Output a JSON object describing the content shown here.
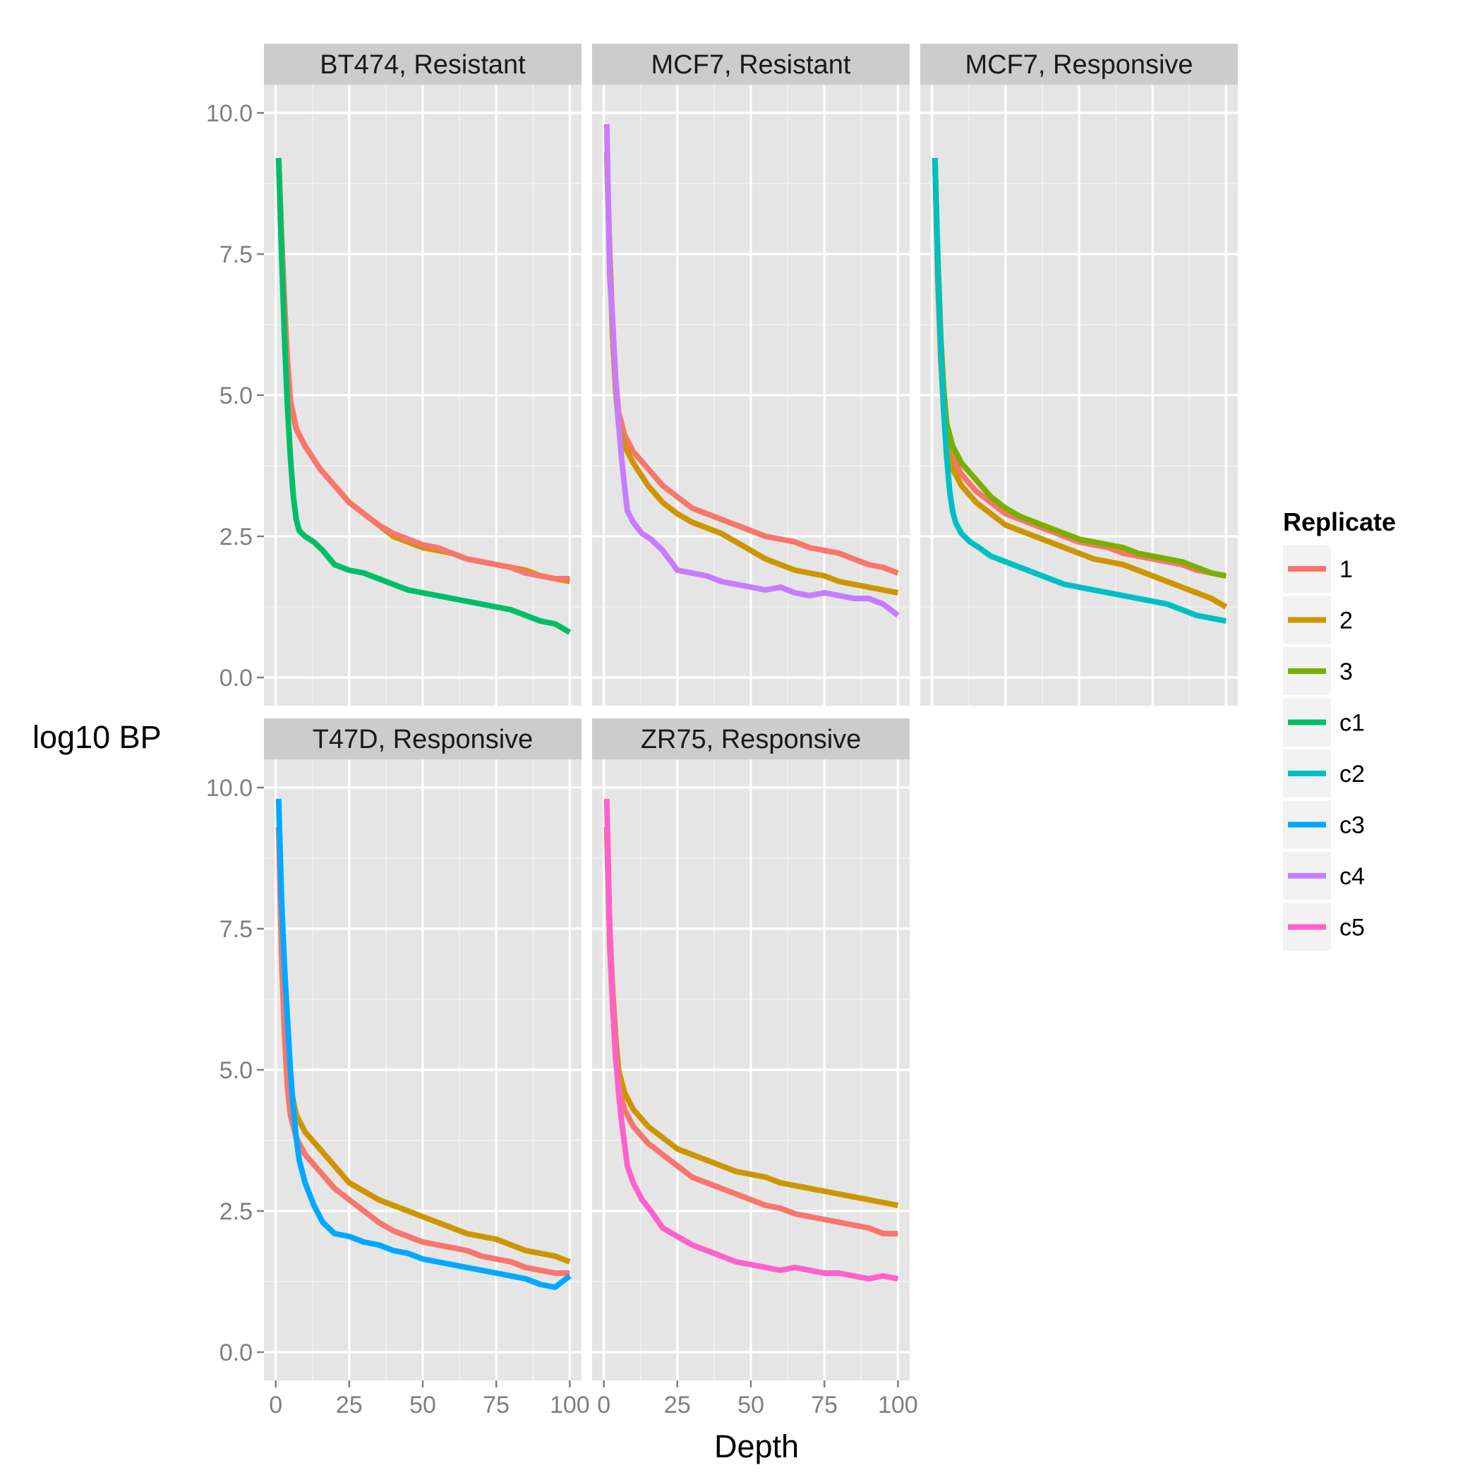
{
  "chart_data": {
    "type": "line",
    "xlabel": "Depth",
    "ylabel": "log10 BP",
    "xlim": [
      -4,
      104
    ],
    "ylim": [
      -0.5,
      10.5
    ],
    "x_ticks": [
      0,
      25,
      50,
      75,
      100
    ],
    "y_ticks": [
      0.0,
      2.5,
      5.0,
      7.5,
      10.0
    ],
    "x_tick_labels": [
      "0",
      "25",
      "50",
      "75",
      "100"
    ],
    "y_tick_labels": [
      "0.0",
      "2.5",
      "5.0",
      "7.5",
      "10.0"
    ],
    "grid": true,
    "legend": {
      "title": "Replicate",
      "placement": "right",
      "entries": [
        {
          "label": "1",
          "color": "#F8766D"
        },
        {
          "label": "2",
          "color": "#CD9600"
        },
        {
          "label": "3",
          "color": "#7CAE00"
        },
        {
          "label": "c1",
          "color": "#00BE67"
        },
        {
          "label": "c2",
          "color": "#00BFC4"
        },
        {
          "label": "c3",
          "color": "#00A9FF"
        },
        {
          "label": "c4",
          "color": "#C77CFF"
        },
        {
          "label": "c5",
          "color": "#FF61CC"
        }
      ]
    },
    "facets": [
      {
        "title": "BT474, Resistant",
        "series": [
          {
            "name": "2",
            "x": [
              1,
              2,
              3,
              4,
              5,
              7,
              10,
              15,
              20,
              25,
              30,
              35,
              40,
              45,
              50,
              55,
              60,
              65,
              70,
              75,
              80,
              85,
              90,
              95,
              100
            ],
            "y": [
              9.2,
              7.8,
              6.6,
              5.6,
              4.9,
              4.4,
              4.1,
              3.7,
              3.4,
              3.1,
              2.9,
              2.7,
              2.5,
              2.4,
              2.3,
              2.25,
              2.2,
              2.1,
              2.05,
              2.0,
              1.95,
              1.9,
              1.8,
              1.75,
              1.7
            ]
          },
          {
            "name": "1",
            "x": [
              1,
              2,
              3,
              4,
              5,
              7,
              10,
              15,
              20,
              25,
              30,
              35,
              40,
              45,
              50,
              55,
              60,
              65,
              70,
              75,
              80,
              85,
              90,
              95,
              100
            ],
            "y": [
              9.2,
              7.8,
              6.6,
              5.6,
              4.9,
              4.4,
              4.1,
              3.7,
              3.4,
              3.1,
              2.9,
              2.7,
              2.55,
              2.45,
              2.35,
              2.3,
              2.2,
              2.1,
              2.05,
              2.0,
              1.95,
              1.85,
              1.8,
              1.75,
              1.75
            ]
          },
          {
            "name": "c1",
            "x": [
              1,
              2,
              3,
              4,
              5,
              6,
              7,
              8,
              10,
              13,
              16,
              20,
              25,
              30,
              35,
              40,
              45,
              50,
              55,
              60,
              65,
              70,
              75,
              80,
              85,
              90,
              95,
              100
            ],
            "y": [
              9.2,
              7.5,
              6.0,
              4.8,
              3.9,
              3.2,
              2.8,
              2.6,
              2.5,
              2.4,
              2.25,
              2.0,
              1.9,
              1.85,
              1.75,
              1.65,
              1.55,
              1.5,
              1.45,
              1.4,
              1.35,
              1.3,
              1.25,
              1.2,
              1.1,
              1.0,
              0.95,
              0.8
            ]
          }
        ]
      },
      {
        "title": "MCF7, Resistant",
        "series": [
          {
            "name": "1",
            "x": [
              1,
              2,
              3,
              4,
              5,
              7,
              10,
              15,
              20,
              25,
              30,
              35,
              40,
              45,
              50,
              55,
              60,
              65,
              70,
              75,
              80,
              85,
              90,
              95,
              100
            ],
            "y": [
              9.3,
              7.5,
              6.2,
              5.3,
              4.7,
              4.3,
              4.0,
              3.7,
              3.4,
              3.2,
              3.0,
              2.9,
              2.8,
              2.7,
              2.6,
              2.5,
              2.45,
              2.4,
              2.3,
              2.25,
              2.2,
              2.1,
              2.0,
              1.95,
              1.85
            ]
          },
          {
            "name": "2",
            "x": [
              1,
              2,
              3,
              4,
              5,
              7,
              10,
              15,
              20,
              25,
              30,
              35,
              40,
              45,
              50,
              55,
              60,
              65,
              70,
              75,
              80,
              85,
              90,
              95,
              100
            ],
            "y": [
              9.3,
              7.4,
              6.0,
              5.1,
              4.5,
              4.1,
              3.8,
              3.4,
              3.1,
              2.9,
              2.75,
              2.65,
              2.55,
              2.4,
              2.25,
              2.1,
              2.0,
              1.9,
              1.85,
              1.8,
              1.7,
              1.65,
              1.6,
              1.55,
              1.5
            ]
          },
          {
            "name": "c4",
            "x": [
              1,
              2,
              3,
              4,
              5,
              6,
              7,
              8,
              10,
              13,
              16,
              20,
              25,
              30,
              35,
              40,
              45,
              50,
              55,
              60,
              65,
              70,
              75,
              80,
              85,
              90,
              95,
              100
            ],
            "y": [
              9.8,
              7.1,
              6.3,
              5.3,
              4.5,
              3.9,
              3.4,
              2.95,
              2.75,
              2.55,
              2.45,
              2.25,
              1.9,
              1.85,
              1.8,
              1.7,
              1.65,
              1.6,
              1.55,
              1.6,
              1.5,
              1.45,
              1.5,
              1.45,
              1.4,
              1.4,
              1.3,
              1.1
            ]
          }
        ]
      },
      {
        "title": "MCF7, Responsive",
        "series": [
          {
            "name": "1",
            "x": [
              1,
              2,
              3,
              4,
              5,
              7,
              10,
              15,
              20,
              25,
              30,
              35,
              40,
              45,
              50,
              55,
              60,
              65,
              70,
              75,
              80,
              85,
              90,
              95,
              100
            ],
            "y": [
              9.2,
              7.2,
              5.8,
              4.9,
              4.3,
              3.9,
              3.6,
              3.3,
              3.1,
              2.9,
              2.8,
              2.7,
              2.6,
              2.5,
              2.4,
              2.35,
              2.3,
              2.2,
              2.15,
              2.1,
              2.05,
              2.0,
              1.9,
              1.85,
              1.8
            ]
          },
          {
            "name": "2",
            "x": [
              1,
              2,
              3,
              4,
              5,
              7,
              10,
              15,
              20,
              25,
              30,
              35,
              40,
              45,
              50,
              55,
              60,
              65,
              70,
              75,
              80,
              85,
              90,
              95,
              100
            ],
            "y": [
              9.2,
              7.0,
              5.6,
              4.7,
              4.1,
              3.7,
              3.4,
              3.1,
              2.9,
              2.7,
              2.6,
              2.5,
              2.4,
              2.3,
              2.2,
              2.1,
              2.05,
              2.0,
              1.9,
              1.8,
              1.7,
              1.6,
              1.5,
              1.4,
              1.25
            ]
          },
          {
            "name": "3",
            "x": [
              1,
              2,
              3,
              4,
              5,
              7,
              10,
              15,
              20,
              25,
              30,
              35,
              40,
              45,
              50,
              55,
              60,
              65,
              70,
              75,
              80,
              85,
              90,
              95,
              100
            ],
            "y": [
              9.2,
              7.4,
              6.0,
              5.1,
              4.5,
              4.1,
              3.8,
              3.5,
              3.2,
              3.0,
              2.85,
              2.75,
              2.65,
              2.55,
              2.45,
              2.4,
              2.35,
              2.3,
              2.2,
              2.15,
              2.1,
              2.05,
              1.95,
              1.85,
              1.8
            ]
          },
          {
            "name": "c2",
            "x": [
              1,
              2,
              3,
              4,
              5,
              6,
              7,
              8,
              10,
              13,
              16,
              20,
              25,
              30,
              35,
              40,
              45,
              50,
              55,
              60,
              65,
              70,
              75,
              80,
              85,
              90,
              95,
              100
            ],
            "y": [
              9.2,
              7.2,
              5.8,
              4.7,
              3.9,
              3.3,
              2.95,
              2.75,
              2.55,
              2.4,
              2.3,
              2.15,
              2.05,
              1.95,
              1.85,
              1.75,
              1.65,
              1.6,
              1.55,
              1.5,
              1.45,
              1.4,
              1.35,
              1.3,
              1.2,
              1.1,
              1.05,
              1.0
            ]
          }
        ]
      },
      {
        "title": "T47D, Responsive",
        "series": [
          {
            "name": "2",
            "x": [
              1,
              2,
              3,
              4,
              5,
              7,
              10,
              15,
              20,
              25,
              30,
              35,
              40,
              45,
              50,
              55,
              60,
              65,
              70,
              75,
              80,
              85,
              90,
              95,
              100
            ],
            "y": [
              9.3,
              7.7,
              6.3,
              5.3,
              4.7,
              4.2,
              3.9,
              3.6,
              3.3,
              3.0,
              2.85,
              2.7,
              2.6,
              2.5,
              2.4,
              2.3,
              2.2,
              2.1,
              2.05,
              2.0,
              1.9,
              1.8,
              1.75,
              1.7,
              1.6
            ]
          },
          {
            "name": "1",
            "x": [
              1,
              2,
              3,
              4,
              5,
              7,
              10,
              15,
              20,
              25,
              30,
              35,
              40,
              45,
              50,
              55,
              60,
              65,
              70,
              75,
              80,
              85,
              90,
              95,
              100
            ],
            "y": [
              9.3,
              7.0,
              5.6,
              4.7,
              4.2,
              3.8,
              3.5,
              3.2,
              2.9,
              2.7,
              2.5,
              2.3,
              2.15,
              2.05,
              1.95,
              1.9,
              1.85,
              1.8,
              1.7,
              1.65,
              1.6,
              1.5,
              1.45,
              1.4,
              1.4
            ]
          },
          {
            "name": "c3",
            "x": [
              1,
              2,
              3,
              4,
              5,
              6,
              7,
              8,
              10,
              13,
              16,
              20,
              25,
              30,
              35,
              40,
              45,
              50,
              55,
              60,
              65,
              70,
              75,
              80,
              85,
              90,
              95,
              100
            ],
            "y": [
              9.8,
              8.0,
              6.8,
              5.9,
              5.0,
              4.3,
              3.8,
              3.4,
              3.0,
              2.6,
              2.3,
              2.1,
              2.05,
              1.95,
              1.9,
              1.8,
              1.75,
              1.65,
              1.6,
              1.55,
              1.5,
              1.45,
              1.4,
              1.35,
              1.3,
              1.2,
              1.15,
              1.35
            ]
          }
        ]
      },
      {
        "title": "ZR75, Responsive",
        "series": [
          {
            "name": "2",
            "x": [
              1,
              2,
              3,
              4,
              5,
              7,
              10,
              15,
              20,
              25,
              30,
              35,
              40,
              45,
              50,
              55,
              60,
              65,
              70,
              75,
              80,
              85,
              90,
              95,
              100
            ],
            "y": [
              9.3,
              7.5,
              6.4,
              5.6,
              5.0,
              4.6,
              4.3,
              4.0,
              3.8,
              3.6,
              3.5,
              3.4,
              3.3,
              3.2,
              3.15,
              3.1,
              3.0,
              2.95,
              2.9,
              2.85,
              2.8,
              2.75,
              2.7,
              2.65,
              2.6
            ]
          },
          {
            "name": "1",
            "x": [
              1,
              2,
              3,
              4,
              5,
              7,
              10,
              15,
              20,
              25,
              30,
              35,
              40,
              45,
              50,
              55,
              60,
              65,
              70,
              75,
              80,
              85,
              90,
              95,
              100
            ],
            "y": [
              9.3,
              7.2,
              6.1,
              5.2,
              4.7,
              4.3,
              4.0,
              3.7,
              3.5,
              3.3,
              3.1,
              3.0,
              2.9,
              2.8,
              2.7,
              2.6,
              2.55,
              2.45,
              2.4,
              2.35,
              2.3,
              2.25,
              2.2,
              2.1,
              2.1
            ]
          },
          {
            "name": "c5",
            "x": [
              1,
              2,
              3,
              4,
              5,
              6,
              7,
              8,
              10,
              13,
              16,
              20,
              25,
              30,
              35,
              40,
              45,
              50,
              55,
              60,
              65,
              70,
              75,
              80,
              85,
              90,
              95,
              100
            ],
            "y": [
              9.8,
              7.5,
              6.2,
              5.3,
              4.6,
              4.1,
              3.7,
              3.3,
              3.0,
              2.7,
              2.5,
              2.2,
              2.05,
              1.9,
              1.8,
              1.7,
              1.6,
              1.55,
              1.5,
              1.45,
              1.5,
              1.45,
              1.4,
              1.4,
              1.35,
              1.3,
              1.35,
              1.3
            ]
          }
        ]
      }
    ]
  }
}
